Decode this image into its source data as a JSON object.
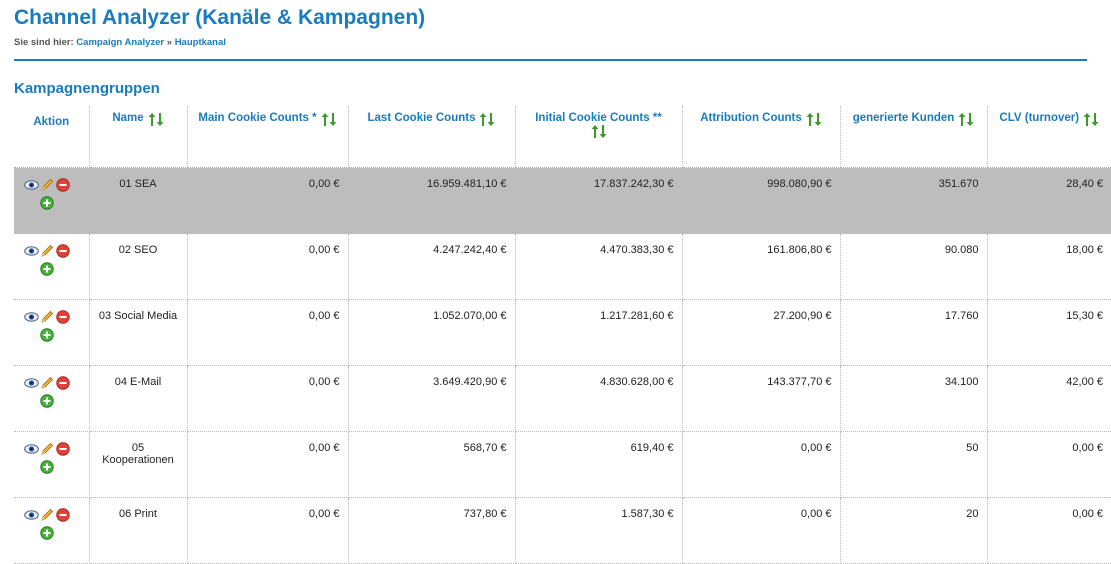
{
  "page": {
    "title": "Channel Analyzer (Kanäle & Kampagnen)",
    "breadcrumb_prefix": "Sie sind hier:",
    "breadcrumb_link1": "Campaign Analyzer",
    "breadcrumb_sep": "»",
    "breadcrumb_link2": "Hauptkanal",
    "section_title": "Kampagnengruppen"
  },
  "table": {
    "headers": {
      "action": "Aktion",
      "name": "Name",
      "main": "Main Cookie Counts *",
      "last": "Last Cookie Counts",
      "initial": "Initial Cookie Counts **",
      "attribution": "Attribution Counts",
      "kunden": "generierte Kunden",
      "clv": "CLV (turnover)"
    },
    "rows": [
      {
        "name": "01 SEA",
        "main": "0,00 €",
        "last": "16.959.481,10 €",
        "initial": "17.837.242,30 €",
        "attribution": "998.080,90 €",
        "kunden": "351.670",
        "clv": "28,40 €"
      },
      {
        "name": "02 SEO",
        "main": "0,00 €",
        "last": "4.247.242,40 €",
        "initial": "4.470.383,30 €",
        "attribution": "161.806,80 €",
        "kunden": "90.080",
        "clv": "18,00 €"
      },
      {
        "name": "03 Social Media",
        "main": "0,00 €",
        "last": "1.052.070,00 €",
        "initial": "1.217.281,60 €",
        "attribution": "27.200,90 €",
        "kunden": "17.760",
        "clv": "15,30 €"
      },
      {
        "name": "04 E-Mail",
        "main": "0,00 €",
        "last": "3.649.420,90 €",
        "initial": "4.830.628,00 €",
        "attribution": "143.377,70 €",
        "kunden": "34.100",
        "clv": "42,00 €"
      },
      {
        "name": "05 Kooperationen",
        "main": "0,00 €",
        "last": "568,70 €",
        "initial": "619,40 €",
        "attribution": "0,00 €",
        "kunden": "50",
        "clv": "0,00 €"
      },
      {
        "name": "06 Print",
        "main": "0,00 €",
        "last": "737,80 €",
        "initial": "1.587,30 €",
        "attribution": "0,00 €",
        "kunden": "20",
        "clv": "0,00 €"
      }
    ],
    "row_icons": [
      "view-icon",
      "edit-icon",
      "delete-icon",
      "add-icon"
    ],
    "header_icon": "sort-icon"
  },
  "colors": {
    "accent": "#1a7bbd",
    "selected_row": "#bdbdbd",
    "sort_icon": "#3a9a2a"
  }
}
